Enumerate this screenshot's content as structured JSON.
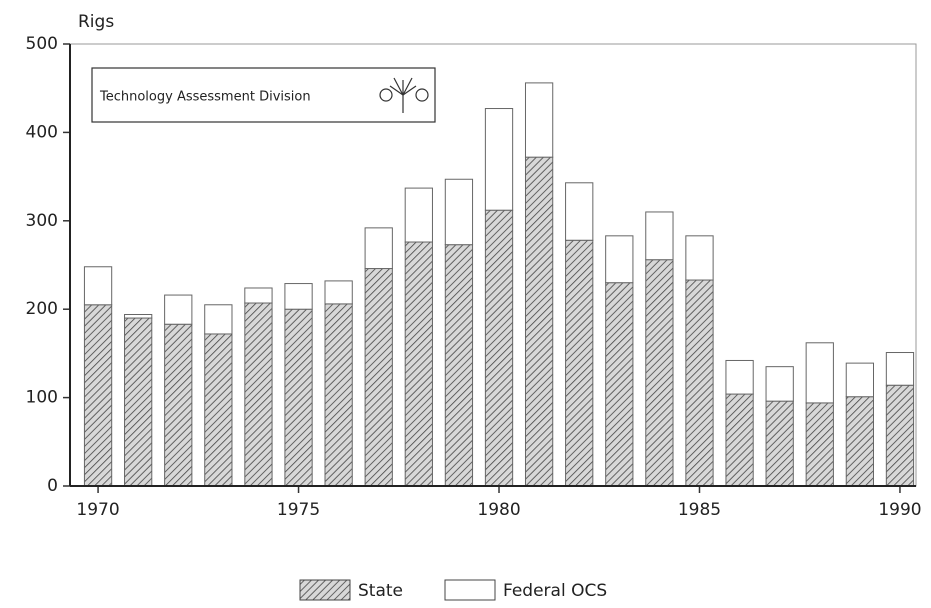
{
  "chart_data": {
    "type": "stacked_bar",
    "y_label": "Rigs",
    "annotation": "Technology Assessment Division",
    "x": [
      1970,
      1971,
      1972,
      1973,
      1974,
      1975,
      1976,
      1977,
      1978,
      1979,
      1980,
      1981,
      1982,
      1983,
      1984,
      1985,
      1986,
      1987,
      1988,
      1989,
      1990
    ],
    "series": [
      {
        "name": "State",
        "color": "#555555",
        "pattern": "hatch",
        "values": [
          205,
          190,
          183,
          172,
          207,
          200,
          206,
          246,
          276,
          273,
          312,
          372,
          278,
          230,
          256,
          233,
          104,
          96,
          94,
          101,
          114
        ]
      },
      {
        "name": "Federal OCS",
        "color": "#ffffff",
        "values": [
          43,
          4,
          33,
          33,
          17,
          29,
          26,
          46,
          61,
          74,
          115,
          84,
          65,
          53,
          54,
          50,
          38,
          39,
          68,
          38,
          37
        ]
      }
    ],
    "xlim": [
      1969.3,
      1990.4
    ],
    "xticks": [
      1970,
      1975,
      1980,
      1985,
      1990
    ],
    "ylim": [
      0,
      500
    ],
    "yticks": [
      0,
      100,
      200,
      300,
      400,
      500
    ],
    "legend": "bottom"
  }
}
